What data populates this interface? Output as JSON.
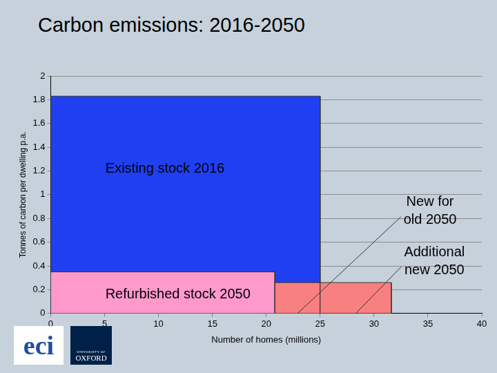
{
  "chart_data": {
    "type": "bar",
    "title": "Carbon emissions: 2016-2050",
    "x_label": "Number of homes (millions)",
    "y_label": "Tonnes of carbon per dwelling p.a.",
    "series": [
      {
        "name": "Existing stock 2016",
        "color": "#1f3ff0",
        "x_start": 0,
        "x_end": 25,
        "value": 1.83
      },
      {
        "name": "Refurbished stock 2050",
        "color": "#ff99cc",
        "x_start": 0,
        "x_end": 20.8,
        "value": 0.35
      },
      {
        "name": "New for old 2050",
        "color": "#f98080",
        "x_start": 20.8,
        "x_end": 25,
        "value": 0.26
      },
      {
        "name": "Additional new 2050",
        "color": "#f98080",
        "x_start": 25,
        "x_end": 31.6,
        "value": 0.26
      }
    ],
    "xlim": [
      0,
      40
    ],
    "xticks": [
      0,
      5,
      10,
      15,
      20,
      25,
      30,
      35,
      40
    ],
    "ylim": [
      0,
      2
    ],
    "yticks": [
      0,
      0.2,
      0.4,
      0.6,
      0.8,
      1,
      1.2,
      1.4,
      1.6,
      1.8,
      2
    ],
    "grid": "y"
  },
  "logos": [
    {
      "lines": [
        "eci"
      ]
    },
    {
      "lines": [
        "UNIVERSITY OF",
        "OXFORD"
      ]
    }
  ]
}
